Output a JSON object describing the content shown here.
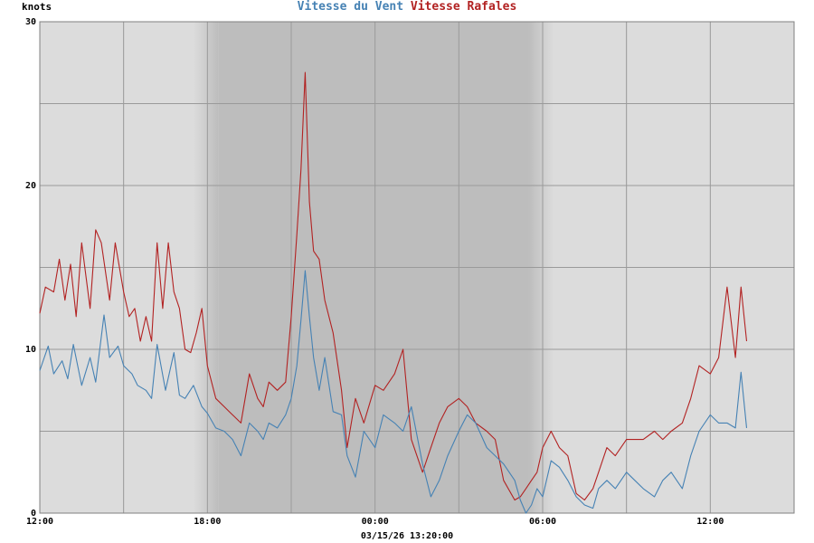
{
  "chart_data": {
    "type": "line",
    "title_parts": [
      {
        "text": "Vitesse du Vent",
        "color": "#4682b4"
      },
      {
        "text": "Vitesse Rafales",
        "color": "#b22222"
      }
    ],
    "ylabel": "knots",
    "xlabel": "03/15/26 13:20:00",
    "ylim": [
      0,
      30
    ],
    "y_ticks": [
      0,
      10,
      20,
      30
    ],
    "x_unit": "hours since 12:00",
    "xlim": [
      0,
      27
    ],
    "x_ticks": [
      {
        "label": "12:00",
        "value": 0
      },
      {
        "label": "18:00",
        "value": 6
      },
      {
        "label": "00:00",
        "value": 12
      },
      {
        "label": "06:00",
        "value": 18
      },
      {
        "label": "12:00",
        "value": 24
      }
    ],
    "grid": true,
    "night_shading": {
      "full_start": 6.4,
      "full_end": 17.5,
      "fade": 0.9
    },
    "series": [
      {
        "name": "Vitesse du Vent",
        "color": "#4682b4",
        "x": [
          0,
          0.3,
          0.5,
          0.8,
          1,
          1.2,
          1.5,
          1.8,
          2,
          2.3,
          2.5,
          2.8,
          3,
          3.3,
          3.5,
          3.8,
          4,
          4.2,
          4.5,
          4.8,
          5,
          5.2,
          5.5,
          5.8,
          6,
          6.3,
          6.6,
          6.9,
          7.2,
          7.5,
          7.8,
          8,
          8.2,
          8.5,
          8.8,
          9,
          9.2,
          9.35,
          9.5,
          9.65,
          9.8,
          10,
          10.2,
          10.5,
          10.8,
          11,
          11.3,
          11.6,
          12,
          12.3,
          12.7,
          13,
          13.3,
          13.7,
          14,
          14.3,
          14.6,
          15,
          15.3,
          15.6,
          16,
          16.3,
          16.6,
          17,
          17.2,
          17.4,
          17.6,
          17.8,
          18,
          18.3,
          18.6,
          18.9,
          19.2,
          19.5,
          19.8,
          20,
          20.3,
          20.6,
          21,
          21.3,
          21.6,
          22,
          22.3,
          22.6,
          23,
          23.3,
          23.6,
          24,
          24.3,
          24.6,
          24.9,
          25.1,
          25.3
        ],
        "y": [
          8.7,
          10.2,
          8.5,
          9.3,
          8.2,
          10.3,
          7.8,
          9.5,
          8,
          12.1,
          9.5,
          10.2,
          9,
          8.5,
          7.8,
          7.5,
          7,
          10.3,
          7.5,
          9.8,
          7.2,
          7,
          7.8,
          6.5,
          6.1,
          5.2,
          5,
          4.5,
          3.5,
          5.5,
          5,
          4.5,
          5.5,
          5.2,
          6,
          7,
          9,
          11.8,
          14.8,
          12,
          9.5,
          7.5,
          9.5,
          6.2,
          6,
          3.5,
          2.2,
          5,
          4,
          6,
          5.5,
          5,
          6.5,
          3,
          1,
          2,
          3.5,
          5,
          6,
          5.5,
          4,
          3.5,
          3,
          2,
          0.8,
          0,
          0.5,
          1.5,
          1,
          3.2,
          2.8,
          2,
          1,
          0.5,
          0.3,
          1.5,
          2,
          1.5,
          2.5,
          2,
          1.5,
          1,
          2,
          2.5,
          1.5,
          3.5,
          5,
          6,
          5.5,
          5.5,
          5.2,
          8.6,
          5.2
        ]
      },
      {
        "name": "Vitesse Rafales",
        "color": "#b22222",
        "x": [
          0,
          0.2,
          0.5,
          0.7,
          0.9,
          1.1,
          1.3,
          1.5,
          1.8,
          2,
          2.2,
          2.5,
          2.7,
          3,
          3.2,
          3.4,
          3.6,
          3.8,
          4,
          4.2,
          4.4,
          4.6,
          4.8,
          5,
          5.2,
          5.4,
          5.6,
          5.8,
          6,
          6.3,
          6.6,
          6.9,
          7.2,
          7.5,
          7.8,
          8,
          8.2,
          8.5,
          8.8,
          9,
          9.2,
          9.35,
          9.5,
          9.65,
          9.8,
          10,
          10.2,
          10.5,
          10.8,
          11,
          11.3,
          11.6,
          12,
          12.3,
          12.7,
          13,
          13.3,
          13.7,
          14,
          14.3,
          14.6,
          15,
          15.3,
          15.6,
          16,
          16.3,
          16.6,
          17,
          17.2,
          17.4,
          17.6,
          17.8,
          18,
          18.3,
          18.6,
          18.9,
          19.2,
          19.5,
          19.8,
          20,
          20.3,
          20.6,
          21,
          21.3,
          21.6,
          22,
          22.3,
          22.6,
          23,
          23.3,
          23.6,
          24,
          24.3,
          24.6,
          24.9,
          25.1,
          25.3
        ],
        "y": [
          12.2,
          13.8,
          13.5,
          15.5,
          13,
          15.2,
          12,
          16.5,
          12.5,
          17.3,
          16.5,
          13,
          16.5,
          13.5,
          12,
          12.5,
          10.5,
          12,
          10.5,
          16.5,
          12.5,
          16.5,
          13.5,
          12.5,
          10,
          9.8,
          11,
          12.5,
          9,
          7,
          6.5,
          6,
          5.5,
          8.5,
          7,
          6.5,
          8,
          7.5,
          8,
          12,
          17,
          21,
          26.9,
          19,
          16,
          15.5,
          13,
          11,
          7.5,
          4,
          7,
          5.5,
          7.8,
          7.5,
          8.5,
          10,
          4.5,
          2.5,
          4,
          5.5,
          6.5,
          7,
          6.5,
          5.5,
          5,
          4.5,
          2,
          0.8,
          1,
          1.5,
          2,
          2.5,
          4,
          5,
          4,
          3.5,
          1.2,
          0.8,
          1.5,
          2.5,
          4,
          3.5,
          4.5,
          4.5,
          4.5,
          5,
          4.5,
          5,
          5.5,
          7,
          9,
          8.5,
          9.5,
          13.8,
          9.5,
          13.8,
          10.5
        ]
      }
    ]
  }
}
